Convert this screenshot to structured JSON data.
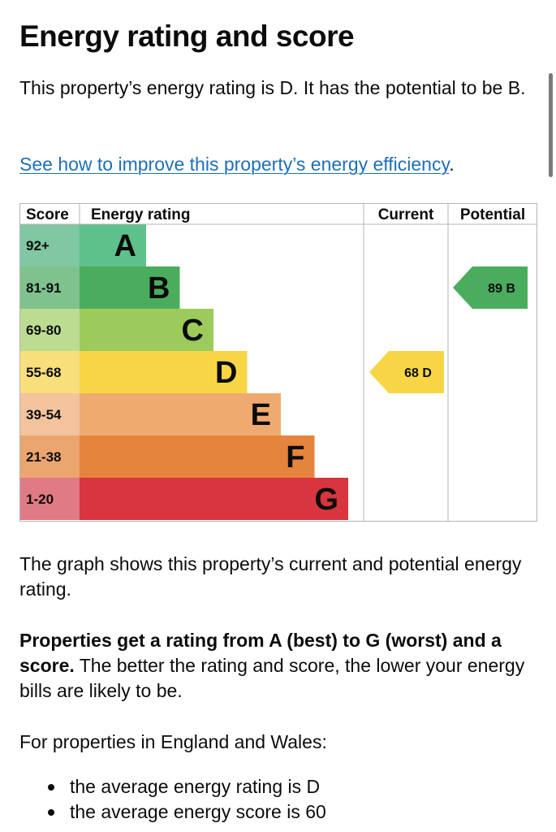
{
  "page": {
    "title": "Energy rating and score",
    "intro": "This property’s energy rating is D. It has the potential to be B.",
    "improve_link": "See how to improve this property’s energy efficiency",
    "improve_link_suffix": ".",
    "graph_note": "The graph shows this property’s current and potential energy rating.",
    "props_bold": "Properties get a rating from A (best) to G (worst) and a score.",
    "props_rest": " The better the rating and score, the lower your energy bills are likely to be.",
    "england_intro": "For properties in England and Wales:",
    "bullets": [
      "the average energy rating is D",
      "the average energy score is 60"
    ]
  },
  "chart_data": {
    "type": "bar",
    "headers": {
      "score": "Score",
      "rating": "Energy rating",
      "current": "Current",
      "potential": "Potential"
    },
    "bands": [
      {
        "letter": "A",
        "range": "92+",
        "color": "#5ec08a",
        "score_bg": "#80c7a3"
      },
      {
        "letter": "B",
        "range": "81-91",
        "color": "#4aad5e",
        "score_bg": "#7fc28d"
      },
      {
        "letter": "C",
        "range": "69-80",
        "color": "#9ccb5b",
        "score_bg": "#bcdc91"
      },
      {
        "letter": "D",
        "range": "55-68",
        "color": "#f7d545",
        "score_bg": "#f8df7c"
      },
      {
        "letter": "E",
        "range": "39-54",
        "color": "#efaa6f",
        "score_bg": "#f3c39e"
      },
      {
        "letter": "F",
        "range": "21-38",
        "color": "#e5843c",
        "score_bg": "#eba56f"
      },
      {
        "letter": "G",
        "range": "1-20",
        "color": "#d8353f",
        "score_bg": "#e07a84"
      }
    ],
    "current": {
      "score": 68,
      "letter": "D",
      "label": "68  D",
      "color": "#f7d545"
    },
    "potential": {
      "score": 89,
      "letter": "B",
      "label": "89  B",
      "color": "#4aad5e"
    }
  }
}
